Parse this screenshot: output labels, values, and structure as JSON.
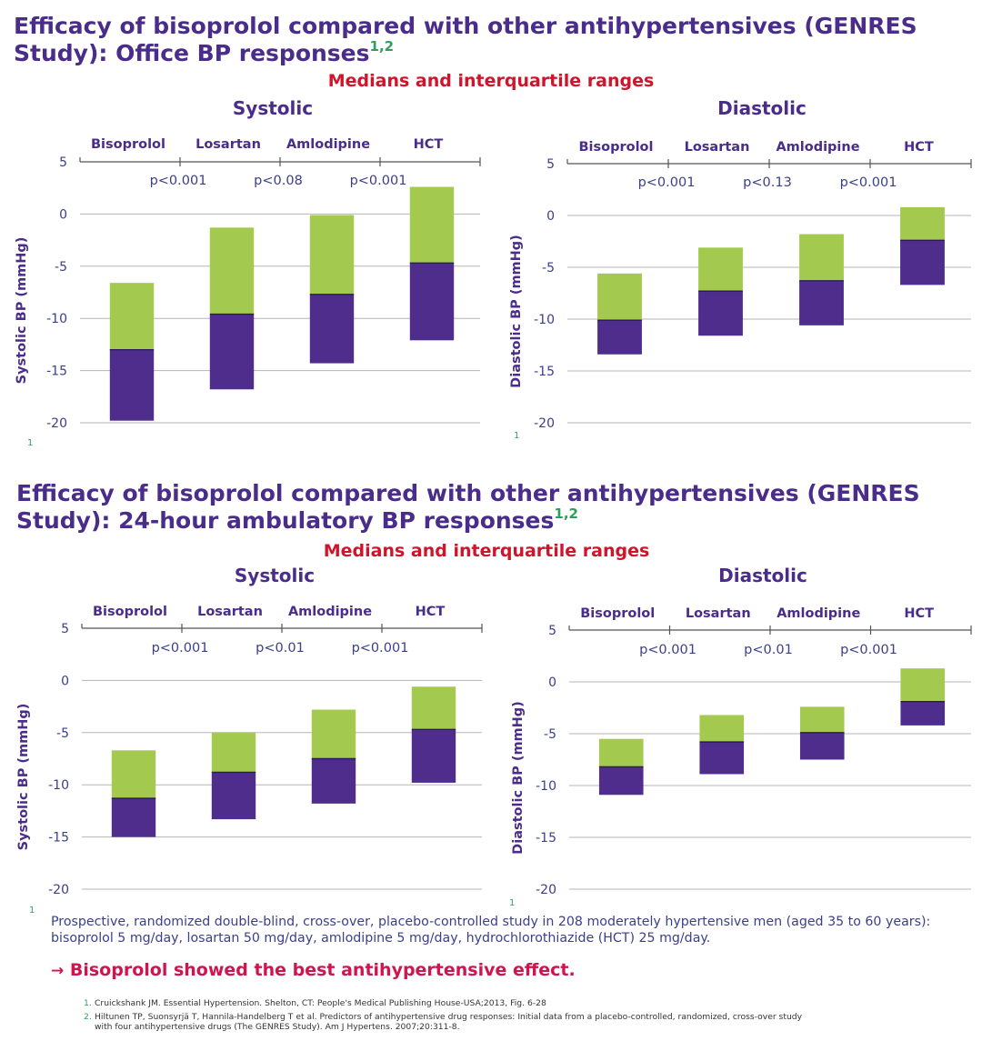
{
  "sections": [
    {
      "title": "Efficacy of bisoprolol compared with other antihypertensives (GENRES Study): Office BP responses",
      "title_sup": "1,2",
      "subtitle": "Medians and interquartile ranges",
      "footnote": "1"
    },
    {
      "title": "Efficacy of bisoprolol compared with other antihypertensives (GENRES Study): 24-hour ambulatory BP responses",
      "title_sup": "1,2",
      "subtitle": "Medians and interquartile ranges",
      "footnote": "1"
    }
  ],
  "colors": {
    "upper_range": "#a3c94f",
    "lower_range": "#4f2d8d",
    "axis_text": "#3b3f8a",
    "label_text": "#4a2c8a",
    "grid": "#b5b5b5"
  },
  "chart_data": [
    {
      "type": "bar",
      "title": "Systolic",
      "ylabel": "Systolic BP (mmHg)",
      "ylim": [
        -20,
        5
      ],
      "yticks": [
        5,
        0,
        -5,
        -10,
        -15,
        -20
      ],
      "categories": [
        "Bisoprolol",
        "Losartan",
        "Amlodipine",
        "HCT"
      ],
      "p_values": [
        "p<0.001",
        "p<0.08",
        "p<0.001"
      ],
      "series": [
        {
          "q1": -19.8,
          "median": -13.0,
          "q3": -6.6
        },
        {
          "q1": -16.8,
          "median": -9.6,
          "q3": -1.3
        },
        {
          "q1": -14.3,
          "median": -7.7,
          "q3": -0.1
        },
        {
          "q1": -12.1,
          "median": -4.7,
          "q3": 2.6
        }
      ],
      "footnote": "1"
    },
    {
      "type": "bar",
      "title": "Diastolic",
      "ylabel": "Diastolic BP (mmHg)",
      "ylim": [
        -20,
        5
      ],
      "yticks": [
        5,
        0,
        -5,
        -10,
        -15,
        -20
      ],
      "categories": [
        "Bisoprolol",
        "Losartan",
        "Amlodipine",
        "HCT"
      ],
      "p_values": [
        "p<0.001",
        "p<0.13",
        "p<0.001"
      ],
      "series": [
        {
          "q1": -13.4,
          "median": -10.1,
          "q3": -5.6
        },
        {
          "q1": -11.6,
          "median": -7.3,
          "q3": -3.1
        },
        {
          "q1": -10.6,
          "median": -6.3,
          "q3": -1.8
        },
        {
          "q1": -6.7,
          "median": -2.4,
          "q3": 0.8
        }
      ],
      "footnote": "1"
    },
    {
      "type": "bar",
      "title": "Systolic",
      "ylabel": "Systolic BP (mmHg)",
      "ylim": [
        -20,
        5
      ],
      "yticks": [
        5,
        0,
        -5,
        -10,
        -15,
        -20
      ],
      "categories": [
        "Bisoprolol",
        "Losartan",
        "Amlodipine",
        "HCT"
      ],
      "p_values": [
        "p<0.001",
        "p<0.01",
        "p<0.001"
      ],
      "series": [
        {
          "q1": -15.0,
          "median": -11.3,
          "q3": -6.7
        },
        {
          "q1": -13.3,
          "median": -8.8,
          "q3": -5.0
        },
        {
          "q1": -11.8,
          "median": -7.5,
          "q3": -2.8
        },
        {
          "q1": -9.8,
          "median": -4.7,
          "q3": -0.6
        }
      ],
      "footnote": "1"
    },
    {
      "type": "bar",
      "title": "Diastolic",
      "ylabel": "Diastolic BP (mmHg)",
      "ylim": [
        -20,
        5
      ],
      "yticks": [
        5,
        0,
        -5,
        -10,
        -15,
        -20
      ],
      "categories": [
        "Bisoprolol",
        "Losartan",
        "Amlodipine",
        "HCT"
      ],
      "p_values": [
        "p<0.001",
        "p<0.01",
        "p<0.001"
      ],
      "series": [
        {
          "q1": -10.9,
          "median": -8.2,
          "q3": -5.5
        },
        {
          "q1": -8.9,
          "median": -5.8,
          "q3": -3.2
        },
        {
          "q1": -7.5,
          "median": -4.9,
          "q3": -2.4
        },
        {
          "q1": -4.2,
          "median": -1.9,
          "q3": 1.3
        }
      ],
      "footnote": "1"
    }
  ],
  "description": "Prospective, randomized double-blind, cross-over, placebo-controlled study in 208 moderately hypertensive men (aged 35 to 60 years): bisoprolol 5 mg/day, losartan 50 mg/day, amlodipine 5 mg/day, hydrochlorothiazide (HCT) 25 mg/day.",
  "conclusion": {
    "arrow": "→",
    "text": "Bisoprolol showed the best antihypertensive effect."
  },
  "references": [
    {
      "num": "1.",
      "text": "Cruickshank JM. Essential Hypertension. Shelton, CT: People's Medical Publishing House-USA;2013, Fig. 6-28"
    },
    {
      "num": "2.",
      "text": "Hiltunen TP, Suonsyrjä T, Hannila-Handelberg T et al. Predictors of antihypertensive drug responses: Initial data from a placebo-controlled, randomized, cross-over study",
      "cont": "with four antihypertensive drugs (The GENRES Study). Am J Hypertens. 2007;20:311-8."
    }
  ]
}
